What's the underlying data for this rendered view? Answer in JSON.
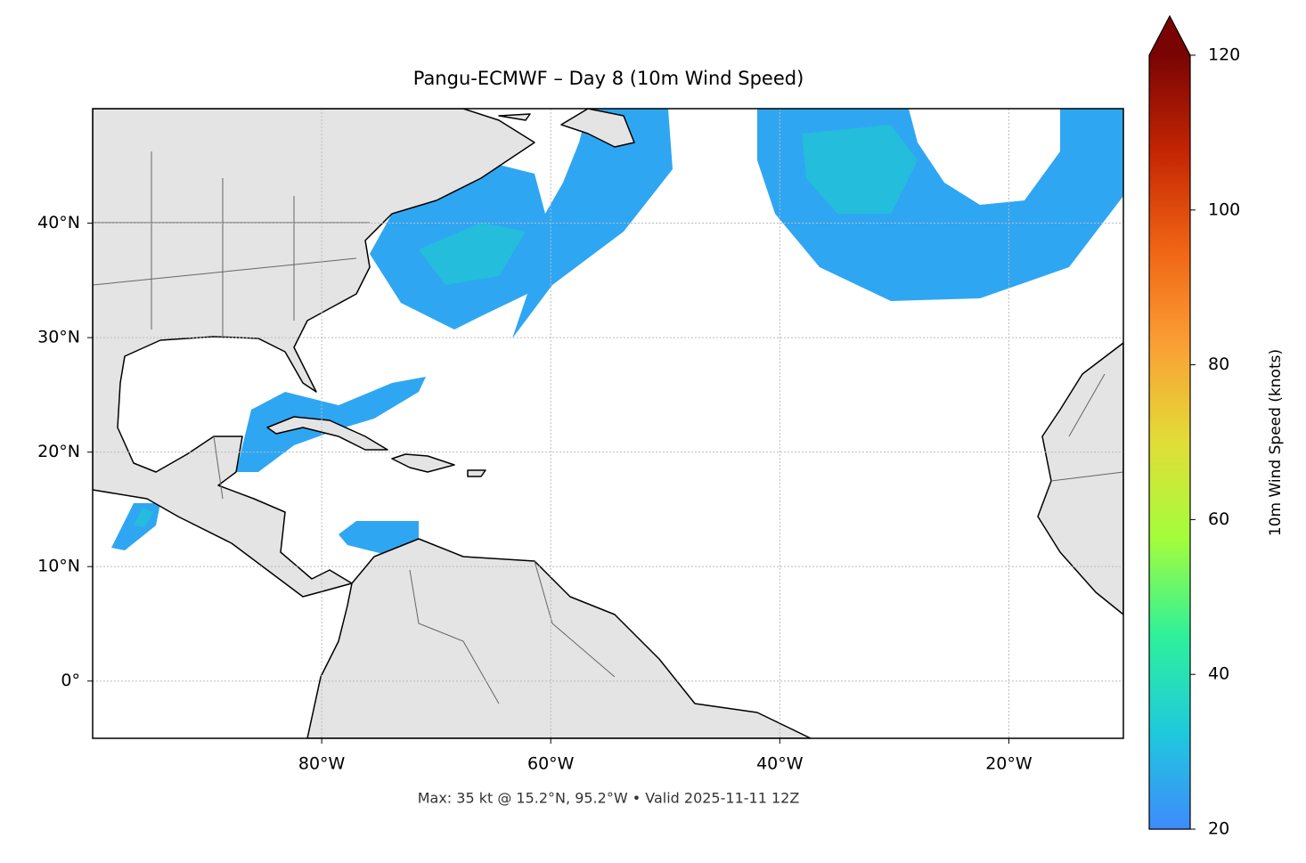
{
  "chart_data": {
    "type": "map",
    "title": "Pangu-ECMWF – Day 8 (10m Wind Speed)",
    "footer": "Max: 35 kt @ 15.2°N, 95.2°W • Valid 2025-11-11 12Z",
    "xlim": [
      -100,
      -10
    ],
    "ylim": [
      -5,
      50
    ],
    "xticks": [
      {
        "value": -80,
        "label": "80°W"
      },
      {
        "value": -60,
        "label": "60°W"
      },
      {
        "value": -40,
        "label": "40°W"
      },
      {
        "value": -20,
        "label": "20°W"
      }
    ],
    "yticks": [
      {
        "value": 0,
        "label": "0°"
      },
      {
        "value": 10,
        "label": "10°N"
      },
      {
        "value": 20,
        "label": "20°N"
      },
      {
        "value": 30,
        "label": "30°N"
      },
      {
        "value": 40,
        "label": "40°N"
      }
    ],
    "grid": true,
    "colorbar": {
      "label": "10m Wind Speed (knots)",
      "lim": [
        20,
        120
      ],
      "ticks": [
        20,
        40,
        60,
        80,
        100,
        120
      ],
      "colors": [
        "#3e8bfb",
        "#1fc9dd",
        "#2ef19a",
        "#a3fd3c",
        "#e1dd37",
        "#fba035",
        "#f06414",
        "#c42503",
        "#7a0403"
      ]
    }
  }
}
